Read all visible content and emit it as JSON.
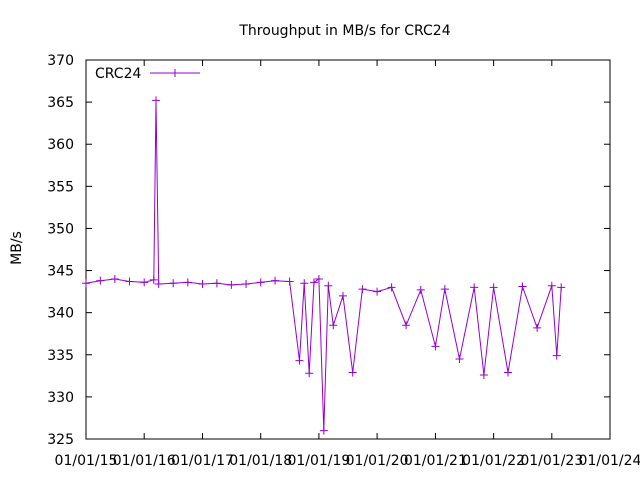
{
  "chart_data": {
    "type": "line",
    "title": "Throughput in MB/s for CRC24",
    "xlabel": "",
    "ylabel": "MB/s",
    "ylim": [
      325,
      370
    ],
    "yticks": [
      325,
      330,
      335,
      340,
      345,
      350,
      355,
      360,
      365,
      370
    ],
    "xlim": [
      "01/01/15",
      "01/01/24"
    ],
    "xticks": [
      "01/01/15",
      "01/01/16",
      "01/01/17",
      "01/01/18",
      "01/01/19",
      "01/01/20",
      "01/01/21",
      "01/01/22",
      "01/01/23",
      "01/01/24"
    ],
    "grid": false,
    "legend_position": "top-left",
    "series": [
      {
        "name": "CRC24",
        "color": "#9400d3",
        "x": [
          "01/01/15",
          "04/01/15",
          "07/01/15",
          "10/01/15",
          "01/01/16",
          "03/01/16",
          "03/15/16",
          "04/01/16",
          "07/01/16",
          "10/01/16",
          "01/01/17",
          "04/01/17",
          "07/01/17",
          "10/01/17",
          "01/01/18",
          "04/01/18",
          "07/01/18",
          "09/01/18",
          "10/01/18",
          "11/01/18",
          "12/01/18",
          "01/01/19",
          "02/01/19",
          "03/01/19",
          "04/01/19",
          "06/01/19",
          "08/01/19",
          "10/01/19",
          "01/01/20",
          "04/01/20",
          "07/01/20",
          "10/01/20",
          "01/01/21",
          "03/01/21",
          "06/01/21",
          "09/01/21",
          "11/01/21",
          "01/01/22",
          "04/01/22",
          "07/01/22",
          "10/01/22",
          "01/01/23",
          "02/01/23",
          "03/01/23"
        ],
        "y": [
          343.5,
          343.8,
          344.0,
          343.7,
          343.6,
          343.9,
          365.2,
          343.4,
          343.5,
          343.6,
          343.4,
          343.5,
          343.3,
          343.4,
          343.6,
          343.8,
          343.7,
          334.3,
          343.5,
          332.8,
          343.6,
          344.0,
          326.0,
          343.2,
          338.5,
          342.0,
          332.9,
          342.8,
          342.5,
          343.0,
          338.5,
          342.7,
          336.0,
          342.8,
          334.5,
          343.0,
          332.6,
          343.0,
          332.9,
          343.1,
          338.2,
          343.2,
          334.9,
          343.0
        ]
      }
    ]
  }
}
